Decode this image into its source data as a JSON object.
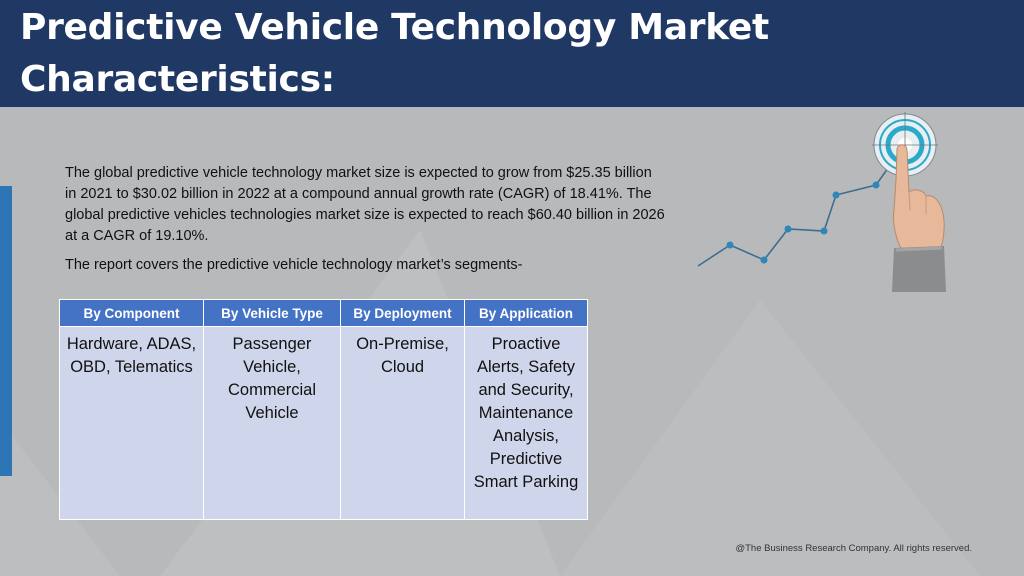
{
  "slide": {
    "title": "Predictive Vehicle Technology Market Characteristics:",
    "paragraphs": [
      "The global predictive vehicle technology market size is expected to grow from $25.35 billion in 2021 to $30.02 billion in 2022 at a compound annual growth rate (CAGR) of 18.41%. The global predictive vehicles technologies market size is expected to reach $60.40 billion in 2026 at a CAGR of 19.10%.",
      "The report covers the predictive vehicle technology market’s segments-"
    ],
    "table": {
      "headers": [
        "By Component",
        "By Vehicle Type",
        "By Deployment",
        "By Application"
      ],
      "cells": [
        "Hardware, ADAS, OBD, Telematics",
        "Passenger Vehicle, Commercial Vehicle",
        "On-Premise, Cloud",
        "Proactive Alerts, Safety and Security, Maintenance Analysis, Predictive Smart Parking"
      ]
    },
    "footer": "@The Business Research Company. All rights reserved."
  },
  "colors": {
    "header_bg": "#1f3864",
    "accent_bar": "#2e75b6",
    "table_header": "#4472c4",
    "table_cell": "#cfd5ea",
    "background": "#b8b9bb"
  },
  "icons": {
    "graphic": "hand-touching-target-graph-icon"
  }
}
